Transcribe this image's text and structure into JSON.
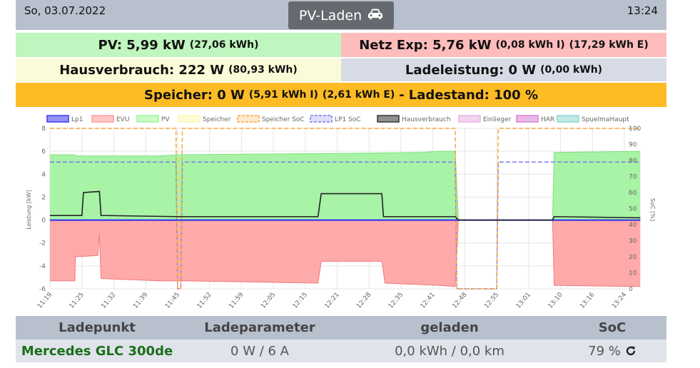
{
  "header": {
    "date": "So, 03.07.2022",
    "time": "13:24",
    "title": "PV-Laden",
    "title_icon": "car-icon"
  },
  "summary": {
    "pv_label": "PV: 5,99 kW",
    "pv_energy": "(27,06 kWh)",
    "netz_label": "Netz Exp: 5,76 kW",
    "netz_import": "(0,08 kWh I)",
    "netz_export": "(17,29 kWh E)",
    "haus_label": "Hausverbrauch: 222 W",
    "haus_energy": "(80,93 kWh)",
    "lade_label": "Ladeleistung: 0 W",
    "lade_energy": "(0,00 kWh)",
    "speicher_label": "Speicher: 0 W",
    "speicher_import": "(5,91 kWh I)",
    "speicher_export": "(2,61 kWh E)",
    "speicher_dash": "-",
    "ladestand_label": "Ladestand: 100 %"
  },
  "colors": {
    "pv_bg": "#bff5be",
    "netz_bg": "#ffbcbc",
    "haus_bg": "#fcfbd9",
    "lade_bg": "#d7dbe6",
    "speicher_bg": "#fdbb24"
  },
  "chart_data": {
    "type": "area",
    "ylabel_left": "Leistung [kW]",
    "ylabel_right": "SoC [%]",
    "ylim_left": [
      -6,
      8
    ],
    "ylim_right": [
      0,
      100
    ],
    "yticks_left": [
      "8",
      "6",
      "4",
      "2",
      "0",
      "-2",
      "-4",
      "-6"
    ],
    "yticks_right": [
      "100",
      "90",
      "80",
      "70",
      "60",
      "50",
      "40",
      "30",
      "20",
      "10",
      "0"
    ],
    "xticks": [
      "11:19",
      "11:25",
      "11:32",
      "11:39",
      "11:45",
      "11:52",
      "11:59",
      "12:05",
      "12:15",
      "12:21",
      "12:28",
      "12:35",
      "12:41",
      "12:48",
      "12:55",
      "13:01",
      "13:10",
      "13:16",
      "13:24"
    ],
    "legend": [
      {
        "name": "Lp1",
        "color": "#3b3bf0"
      },
      {
        "name": "EVU",
        "color": "#ff9a9a"
      },
      {
        "name": "PV",
        "color": "#9df59b"
      },
      {
        "name": "Speicher",
        "color": "#fbf8b5"
      },
      {
        "name": "Speicher SoC",
        "color": "#fba53c"
      },
      {
        "name": "LP1 SoC",
        "color": "#7b7bf0"
      },
      {
        "name": "Hausverbrauch",
        "color": "#333333"
      },
      {
        "name": "Einlieger",
        "color": "#e7b3e1"
      },
      {
        "name": "HAR",
        "color": "#d982d6"
      },
      {
        "name": "SpuelmaHaupt",
        "color": "#8ed7d2"
      }
    ],
    "legend_position": "top",
    "grid": true,
    "pv_kw": [
      [
        0,
        5.7
      ],
      [
        0.78,
        5.7
      ],
      [
        0.8,
        5.6
      ],
      [
        1.5,
        5.6
      ],
      [
        1.55,
        5.6
      ],
      [
        3.4,
        5.6
      ],
      [
        4.05,
        5.7
      ],
      [
        8.4,
        5.8
      ],
      [
        8.55,
        5.8
      ],
      [
        11.6,
        5.9
      ],
      [
        12.2,
        6.0
      ],
      [
        12.7,
        6.0
      ],
      [
        12.8,
        0
      ],
      [
        12.88,
        0
      ],
      [
        15.75,
        0
      ],
      [
        15.8,
        5.9
      ],
      [
        18.5,
        6.0
      ]
    ],
    "evu_kw": [
      [
        0,
        -5.3
      ],
      [
        0.78,
        -5.3
      ],
      [
        0.8,
        -3.2
      ],
      [
        1.5,
        -3.1
      ],
      [
        1.55,
        -1.2
      ],
      [
        1.6,
        -5.1
      ],
      [
        3.4,
        -5.3
      ],
      [
        4.05,
        -5.3
      ],
      [
        8.4,
        -5.5
      ],
      [
        8.5,
        -3.6
      ],
      [
        10.4,
        -3.6
      ],
      [
        10.5,
        -5.5
      ],
      [
        12.2,
        -5.7
      ],
      [
        12.7,
        -5.8
      ],
      [
        12.8,
        0
      ],
      [
        15.75,
        0
      ],
      [
        15.8,
        -5.7
      ],
      [
        18.5,
        -5.8
      ]
    ],
    "house_kw": [
      [
        0,
        0.4
      ],
      [
        1.0,
        0.4
      ],
      [
        1.05,
        2.4
      ],
      [
        1.55,
        2.5
      ],
      [
        1.6,
        0.4
      ],
      [
        4.0,
        0.3
      ],
      [
        4.05,
        0.3
      ],
      [
        8.4,
        0.3
      ],
      [
        8.5,
        2.3
      ],
      [
        10.4,
        2.3
      ],
      [
        10.45,
        0.3
      ],
      [
        12.7,
        0.3
      ],
      [
        12.8,
        0
      ],
      [
        15.75,
        0
      ],
      [
        15.8,
        0.3
      ],
      [
        18.5,
        0.2
      ]
    ],
    "lp1_kw": [
      [
        0,
        0.0
      ],
      [
        18.5,
        0.0
      ]
    ],
    "speicher_soc_pct": [
      [
        0,
        100
      ],
      [
        3.95,
        100
      ],
      [
        4.0,
        0
      ],
      [
        4.1,
        0
      ],
      [
        4.15,
        100
      ],
      [
        12.7,
        100
      ],
      [
        12.75,
        0
      ],
      [
        14.0,
        0
      ],
      [
        14.05,
        100
      ],
      [
        18.5,
        100
      ]
    ],
    "lp1_soc_pct": [
      [
        0,
        79
      ],
      [
        3.95,
        79
      ],
      [
        4.0,
        0
      ],
      [
        4.1,
        0
      ],
      [
        4.15,
        79
      ],
      [
        12.7,
        79
      ],
      [
        12.75,
        0
      ],
      [
        14.0,
        0
      ],
      [
        14.05,
        79
      ],
      [
        18.5,
        79
      ]
    ]
  },
  "table": {
    "headers": [
      "Ladepunkt",
      "Ladeparameter",
      "geladen",
      "SoC"
    ],
    "row": {
      "ladepunkt": "Mercedes GLC 300de",
      "ladeparameter": "0 W / 6 A",
      "geladen": "0,0 kWh / 0,0 km",
      "soc": "79 %",
      "soc_icon": "refresh-icon"
    }
  }
}
